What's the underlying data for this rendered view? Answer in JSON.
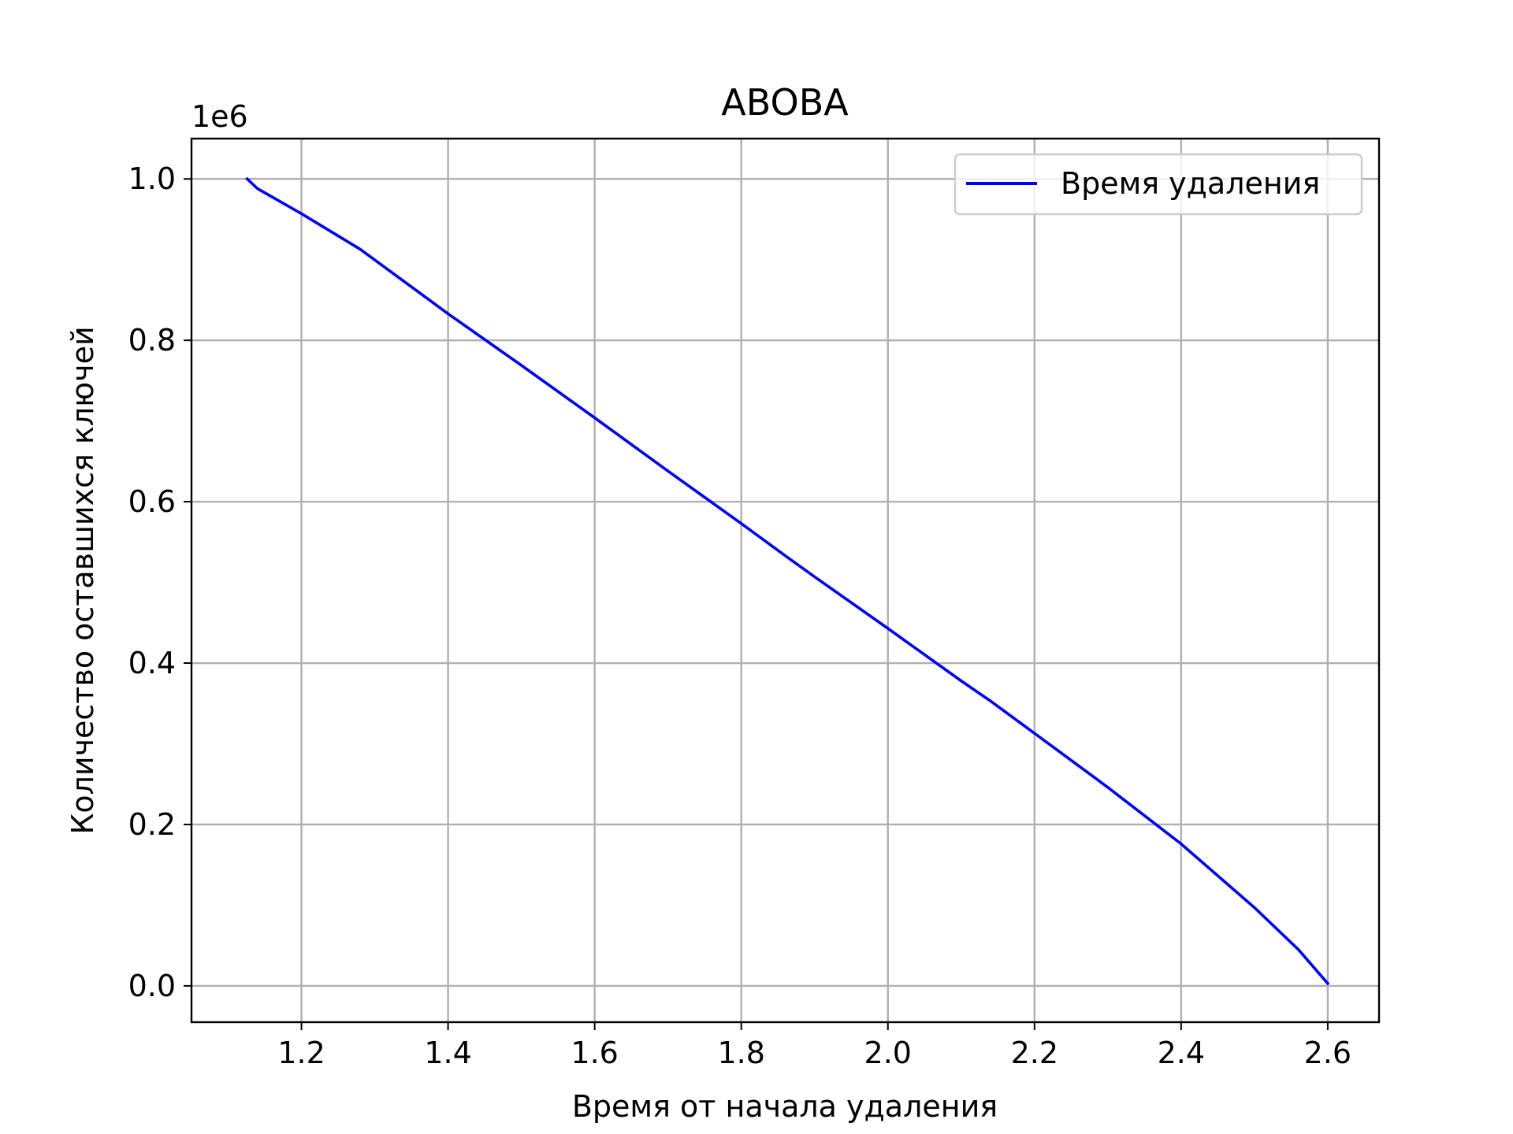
{
  "chart_data": {
    "type": "line",
    "title": "ABOBA",
    "xlabel": "Время от начала удаления",
    "ylabel": "Количество оставшихся ключей",
    "y_offset_label": "1e6",
    "xlim": [
      1.05,
      2.67
    ],
    "ylim": [
      -0.045,
      1.05
    ],
    "xticks": [
      1.2,
      1.4,
      1.6,
      1.8,
      2.0,
      2.2,
      2.4,
      2.6
    ],
    "xtick_labels": [
      "1.2",
      "1.4",
      "1.6",
      "1.8",
      "2.0",
      "2.2",
      "2.4",
      "2.6"
    ],
    "yticks": [
      0.0,
      0.2,
      0.4,
      0.6,
      0.8,
      1.0
    ],
    "ytick_labels": [
      "0.0",
      "0.2",
      "0.4",
      "0.6",
      "0.8",
      "1.0"
    ],
    "grid": true,
    "legend_position": "top-right",
    "series": [
      {
        "name": "Время удаления",
        "color": "#0000ff",
        "x": [
          1.126,
          1.14,
          1.2,
          1.28,
          1.4,
          1.5,
          1.6,
          1.7,
          1.8,
          1.86,
          1.9,
          2.0,
          2.1,
          2.14,
          2.2,
          2.3,
          2.4,
          2.5,
          2.56,
          2.6
        ],
        "y": [
          1.0,
          0.988,
          0.957,
          0.913,
          0.833,
          0.769,
          0.704,
          0.638,
          0.573,
          0.533,
          0.507,
          0.443,
          0.378,
          0.353,
          0.313,
          0.246,
          0.176,
          0.097,
          0.045,
          0.003
        ]
      }
    ]
  }
}
